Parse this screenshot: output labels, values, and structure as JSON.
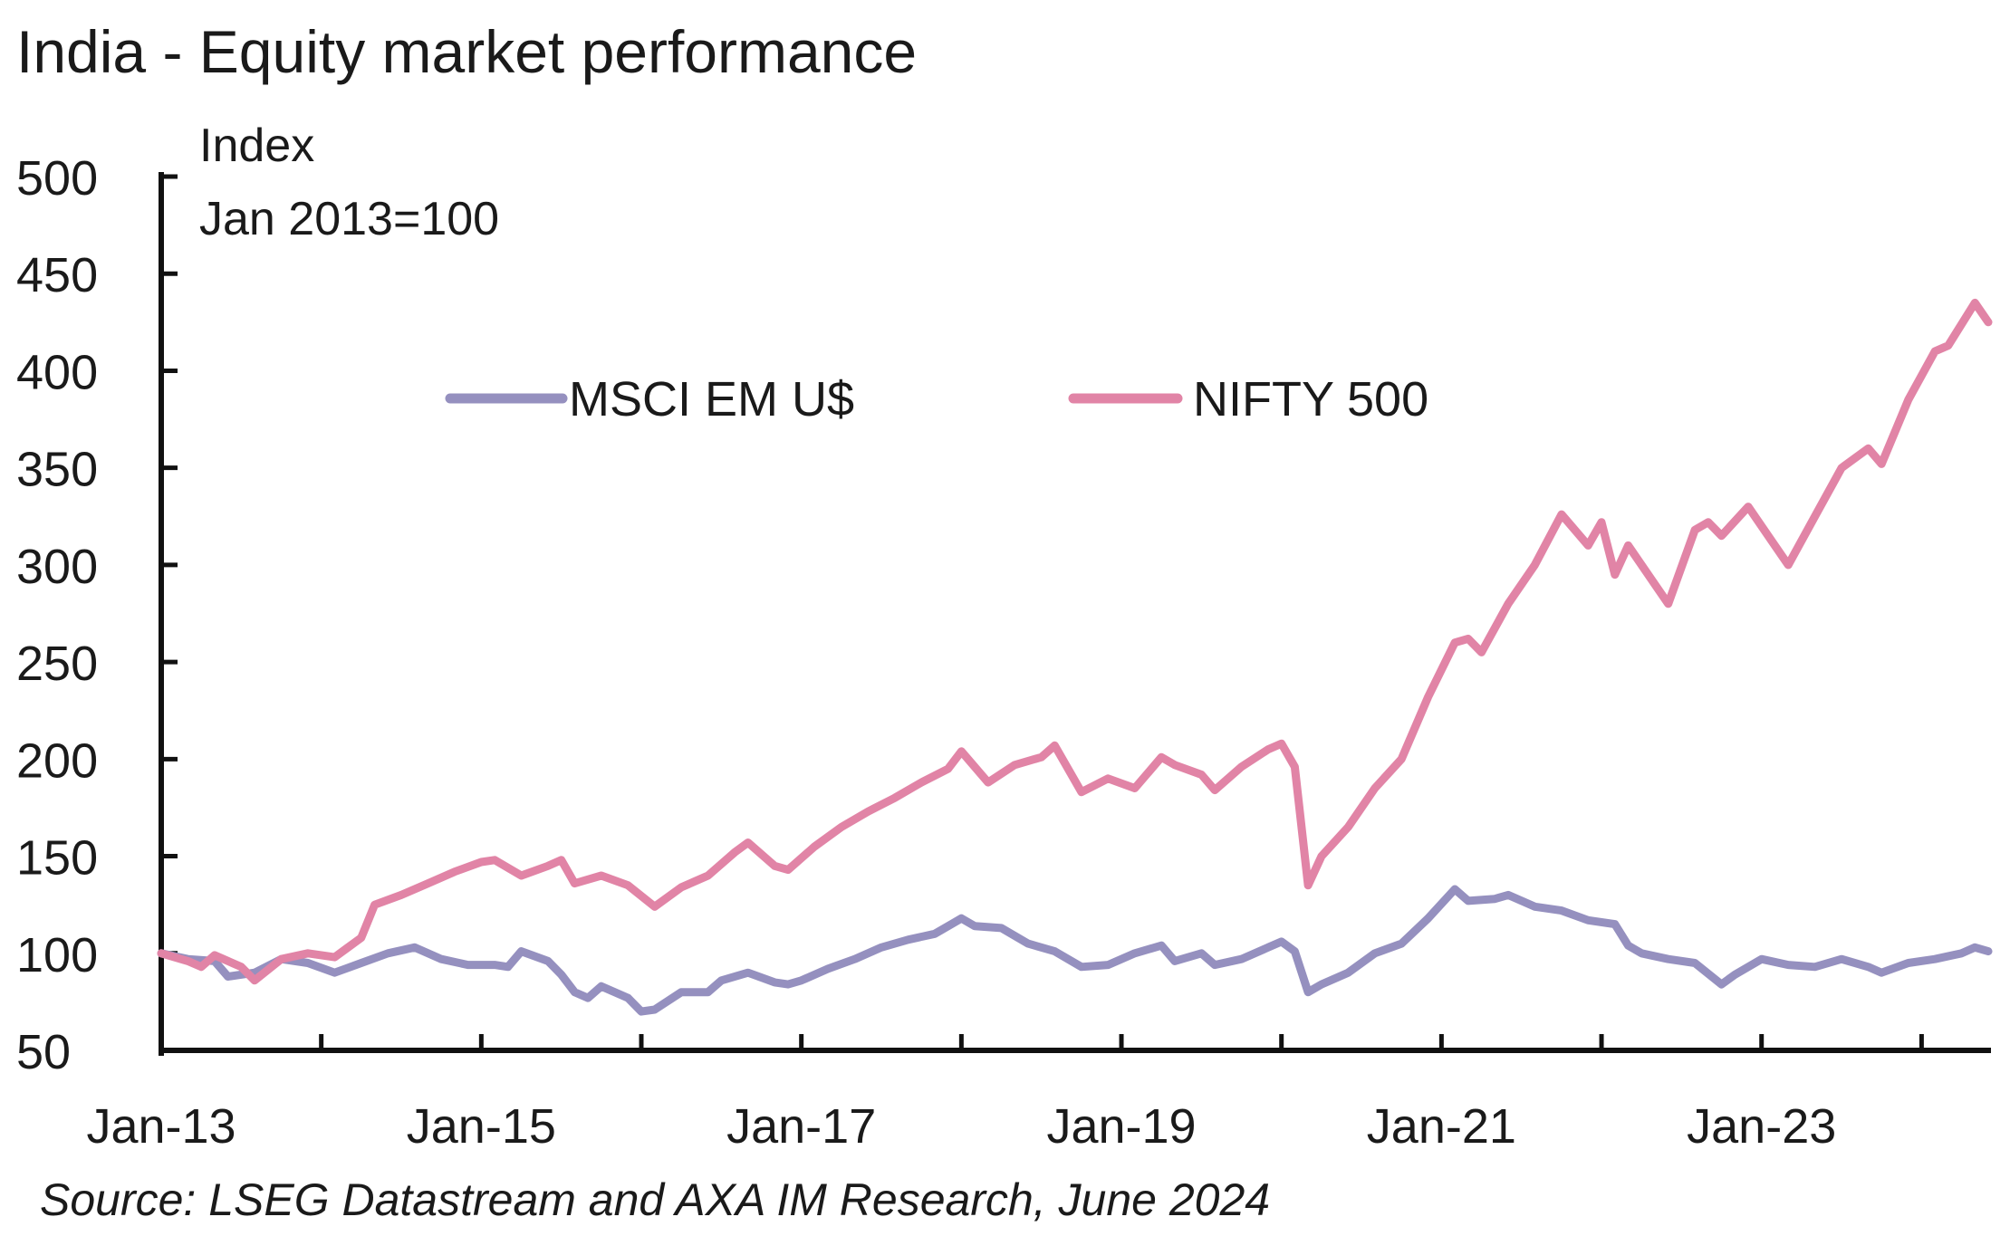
{
  "chart_data": {
    "type": "line",
    "title": "India - Equity market performance",
    "ylabel_line1": "Index",
    "ylabel_line2": "Jan 2013=100",
    "ylim": [
      50,
      500
    ],
    "yticks": [
      50,
      100,
      150,
      200,
      250,
      300,
      350,
      400,
      450,
      500
    ],
    "xlim": [
      "2013-01",
      "2024-06"
    ],
    "xticks_major": [
      "Jan-13",
      "Jan-15",
      "Jan-17",
      "Jan-19",
      "Jan-21",
      "Jan-23"
    ],
    "grid": false,
    "legend_placement": "top-center",
    "source": "Source: LSEG Datastream and AXA IM Research, June 2024",
    "series": [
      {
        "name": "MSCI EM U$",
        "color": "#9590bf",
        "points": [
          [
            "2013-01",
            100
          ],
          [
            "2013-03",
            97
          ],
          [
            "2013-05",
            96
          ],
          [
            "2013-06",
            88
          ],
          [
            "2013-08",
            90
          ],
          [
            "2013-10",
            97
          ],
          [
            "2013-12",
            95
          ],
          [
            "2014-02",
            90
          ],
          [
            "2014-04",
            95
          ],
          [
            "2014-06",
            100
          ],
          [
            "2014-08",
            103
          ],
          [
            "2014-09",
            100
          ],
          [
            "2014-10",
            97
          ],
          [
            "2014-12",
            94
          ],
          [
            "2015-02",
            94
          ],
          [
            "2015-03",
            93
          ],
          [
            "2015-04",
            101
          ],
          [
            "2015-06",
            96
          ],
          [
            "2015-07",
            89
          ],
          [
            "2015-08",
            80
          ],
          [
            "2015-09",
            77
          ],
          [
            "2015-10",
            83
          ],
          [
            "2015-12",
            77
          ],
          [
            "2016-01",
            70
          ],
          [
            "2016-02",
            71
          ],
          [
            "2016-04",
            80
          ],
          [
            "2016-06",
            80
          ],
          [
            "2016-07",
            86
          ],
          [
            "2016-09",
            90
          ],
          [
            "2016-11",
            85
          ],
          [
            "2016-12",
            84
          ],
          [
            "2017-01",
            86
          ],
          [
            "2017-03",
            92
          ],
          [
            "2017-05",
            97
          ],
          [
            "2017-07",
            103
          ],
          [
            "2017-09",
            107
          ],
          [
            "2017-11",
            110
          ],
          [
            "2018-01",
            118
          ],
          [
            "2018-02",
            114
          ],
          [
            "2018-04",
            113
          ],
          [
            "2018-06",
            105
          ],
          [
            "2018-08",
            101
          ],
          [
            "2018-10",
            93
          ],
          [
            "2018-12",
            94
          ],
          [
            "2019-02",
            100
          ],
          [
            "2019-04",
            104
          ],
          [
            "2019-05",
            96
          ],
          [
            "2019-07",
            100
          ],
          [
            "2019-08",
            94
          ],
          [
            "2019-10",
            97
          ],
          [
            "2019-12",
            103
          ],
          [
            "2020-01",
            106
          ],
          [
            "2020-02",
            101
          ],
          [
            "2020-03",
            80
          ],
          [
            "2020-04",
            84
          ],
          [
            "2020-06",
            90
          ],
          [
            "2020-08",
            100
          ],
          [
            "2020-10",
            105
          ],
          [
            "2020-12",
            118
          ],
          [
            "2021-02",
            133
          ],
          [
            "2021-03",
            127
          ],
          [
            "2021-05",
            128
          ],
          [
            "2021-06",
            130
          ],
          [
            "2021-08",
            124
          ],
          [
            "2021-10",
            122
          ],
          [
            "2021-12",
            117
          ],
          [
            "2022-02",
            115
          ],
          [
            "2022-03",
            104
          ],
          [
            "2022-04",
            100
          ],
          [
            "2022-06",
            97
          ],
          [
            "2022-08",
            95
          ],
          [
            "2022-10",
            84
          ],
          [
            "2022-11",
            89
          ],
          [
            "2023-01",
            97
          ],
          [
            "2023-03",
            94
          ],
          [
            "2023-05",
            93
          ],
          [
            "2023-07",
            97
          ],
          [
            "2023-09",
            93
          ],
          [
            "2023-10",
            90
          ],
          [
            "2023-12",
            95
          ],
          [
            "2024-02",
            97
          ],
          [
            "2024-04",
            100
          ],
          [
            "2024-05",
            103
          ],
          [
            "2024-06",
            101
          ]
        ]
      },
      {
        "name": "NIFTY 500",
        "color": "#e184a6",
        "points": [
          [
            "2013-01",
            100
          ],
          [
            "2013-03",
            96
          ],
          [
            "2013-04",
            93
          ],
          [
            "2013-05",
            99
          ],
          [
            "2013-07",
            93
          ],
          [
            "2013-08",
            86
          ],
          [
            "2013-10",
            97
          ],
          [
            "2013-12",
            100
          ],
          [
            "2014-02",
            98
          ],
          [
            "2014-04",
            108
          ],
          [
            "2014-05",
            125
          ],
          [
            "2014-07",
            130
          ],
          [
            "2014-09",
            136
          ],
          [
            "2014-11",
            142
          ],
          [
            "2015-01",
            147
          ],
          [
            "2015-02",
            148
          ],
          [
            "2015-04",
            140
          ],
          [
            "2015-06",
            145
          ],
          [
            "2015-07",
            148
          ],
          [
            "2015-08",
            136
          ],
          [
            "2015-10",
            140
          ],
          [
            "2015-12",
            135
          ],
          [
            "2016-02",
            124
          ],
          [
            "2016-04",
            134
          ],
          [
            "2016-06",
            140
          ],
          [
            "2016-08",
            152
          ],
          [
            "2016-09",
            157
          ],
          [
            "2016-11",
            145
          ],
          [
            "2016-12",
            143
          ],
          [
            "2017-02",
            155
          ],
          [
            "2017-04",
            165
          ],
          [
            "2017-06",
            173
          ],
          [
            "2017-08",
            180
          ],
          [
            "2017-10",
            188
          ],
          [
            "2017-12",
            195
          ],
          [
            "2018-01",
            204
          ],
          [
            "2018-03",
            188
          ],
          [
            "2018-05",
            197
          ],
          [
            "2018-07",
            201
          ],
          [
            "2018-08",
            207
          ],
          [
            "2018-10",
            183
          ],
          [
            "2018-12",
            190
          ],
          [
            "2019-02",
            185
          ],
          [
            "2019-04",
            201
          ],
          [
            "2019-05",
            197
          ],
          [
            "2019-07",
            192
          ],
          [
            "2019-08",
            184
          ],
          [
            "2019-10",
            196
          ],
          [
            "2019-12",
            205
          ],
          [
            "2020-01",
            208
          ],
          [
            "2020-02",
            196
          ],
          [
            "2020-03",
            135
          ],
          [
            "2020-04",
            150
          ],
          [
            "2020-06",
            165
          ],
          [
            "2020-08",
            185
          ],
          [
            "2020-10",
            200
          ],
          [
            "2020-12",
            232
          ],
          [
            "2021-02",
            260
          ],
          [
            "2021-03",
            262
          ],
          [
            "2021-04",
            255
          ],
          [
            "2021-06",
            280
          ],
          [
            "2021-08",
            300
          ],
          [
            "2021-10",
            326
          ],
          [
            "2021-12",
            310
          ],
          [
            "2022-01",
            322
          ],
          [
            "2022-02",
            295
          ],
          [
            "2022-03",
            310
          ],
          [
            "2022-05",
            290
          ],
          [
            "2022-06",
            280
          ],
          [
            "2022-08",
            318
          ],
          [
            "2022-09",
            322
          ],
          [
            "2022-10",
            315
          ],
          [
            "2022-12",
            330
          ],
          [
            "2023-02",
            310
          ],
          [
            "2023-03",
            300
          ],
          [
            "2023-05",
            325
          ],
          [
            "2023-07",
            350
          ],
          [
            "2023-09",
            360
          ],
          [
            "2023-10",
            352
          ],
          [
            "2023-12",
            385
          ],
          [
            "2024-02",
            410
          ],
          [
            "2024-03",
            413
          ],
          [
            "2024-05",
            435
          ],
          [
            "2024-06",
            425
          ]
        ]
      }
    ]
  }
}
